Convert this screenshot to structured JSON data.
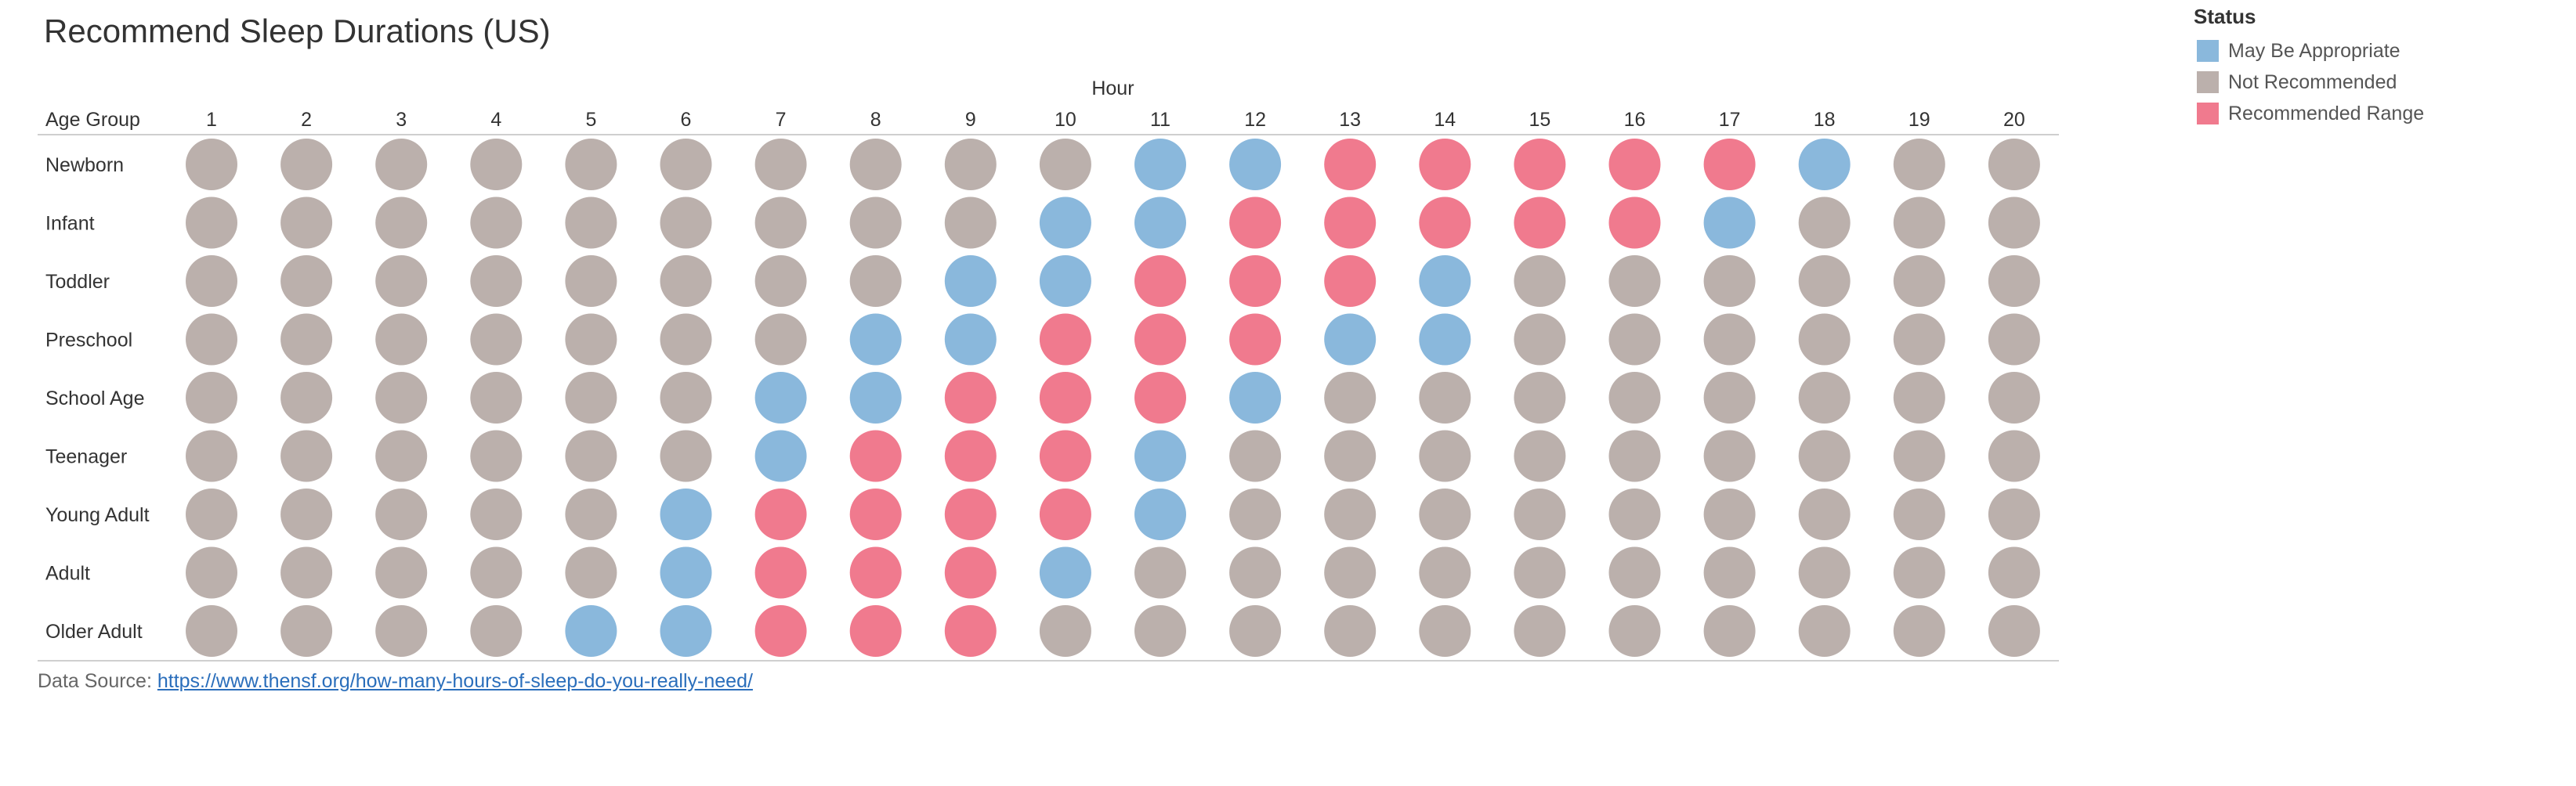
{
  "title": "Recommend Sleep Durations (US)",
  "legend": {
    "title": "Status",
    "items": [
      {
        "key": "may",
        "label": "May Be Appropriate",
        "color": "#8ab8dc"
      },
      {
        "key": "not",
        "label": "Not Recommended",
        "color": "#bbb0ac"
      },
      {
        "key": "rec",
        "label": "Recommended Range",
        "color": "#f07a8e"
      }
    ]
  },
  "source": {
    "prefix": "Data Source: ",
    "url": "https://www.thensf.org/how-many-hours-of-sleep-do-you-really-need/"
  },
  "chart_data": {
    "type": "heatmap",
    "title": "Recommend Sleep Durations (US)",
    "xlabel": "Hour",
    "row_header": "Age Group",
    "x": [
      "1",
      "2",
      "3",
      "4",
      "5",
      "6",
      "7",
      "8",
      "9",
      "10",
      "11",
      "12",
      "13",
      "14",
      "15",
      "16",
      "17",
      "18",
      "19",
      "20"
    ],
    "rows": [
      {
        "name": "Newborn",
        "status": {
          "may": [
            11,
            12,
            18
          ],
          "rec": [
            13,
            14,
            15,
            16,
            17
          ]
        }
      },
      {
        "name": "Infant",
        "status": {
          "may": [
            10,
            11,
            17
          ],
          "rec": [
            12,
            13,
            14,
            15,
            16
          ]
        }
      },
      {
        "name": "Toddler",
        "status": {
          "may": [
            9,
            10,
            14
          ],
          "rec": [
            11,
            12,
            13
          ]
        }
      },
      {
        "name": "Preschool",
        "status": {
          "may": [
            8,
            9,
            13,
            14
          ],
          "rec": [
            10,
            11,
            12
          ]
        }
      },
      {
        "name": "School Age",
        "status": {
          "may": [
            7,
            8,
            12
          ],
          "rec": [
            9,
            10,
            11
          ]
        }
      },
      {
        "name": "Teenager",
        "status": {
          "may": [
            7,
            11
          ],
          "rec": [
            8,
            9,
            10
          ]
        }
      },
      {
        "name": "Young Adult",
        "status": {
          "may": [
            6,
            11
          ],
          "rec": [
            7,
            8,
            9,
            10
          ]
        }
      },
      {
        "name": "Adult",
        "status": {
          "may": [
            6,
            10
          ],
          "rec": [
            7,
            8,
            9
          ]
        }
      },
      {
        "name": "Older Adult",
        "status": {
          "may": [
            5,
            6
          ],
          "rec": [
            7,
            8,
            9
          ]
        }
      }
    ],
    "default_status": "not",
    "legend_position": "top-right",
    "grid": false
  }
}
